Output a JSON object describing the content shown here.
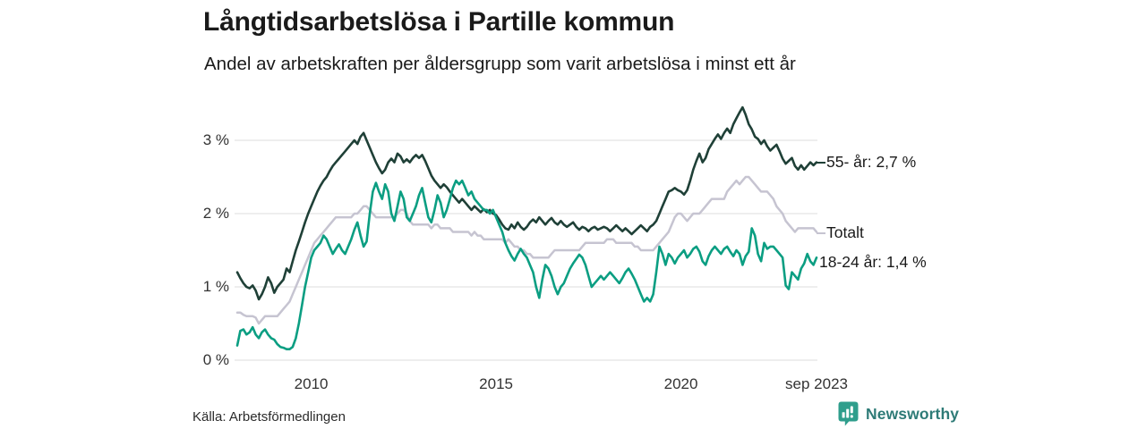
{
  "header": {
    "title": "Långtidsarbetslösa i Partille kommun",
    "subtitle": "Andel av arbetskraften per åldersgrupp som varit arbetslösa i minst ett år"
  },
  "footer": {
    "source": "Källa: Arbetsförmedlingen",
    "brand": "Newsworthy",
    "logo_icon": "bar-chart-speech-bubble-icon"
  },
  "colors": {
    "series_55": "#1f4037",
    "series_total": "#c6c4d1",
    "series_1824": "#0b9e82",
    "grid": "#dddddd",
    "axis_text": "#333333",
    "text": "#1a1a1a",
    "brand_text": "#2e7b77",
    "brand_icon": "#2f9e8c"
  },
  "chart_data": {
    "type": "line",
    "title": "Långtidsarbetslösa i Partille kommun",
    "subtitle": "Andel av arbetskraften per åldersgrupp som varit arbetslösa i minst ett år",
    "unit": "%",
    "x_unit": "month",
    "x_start": "2008-01",
    "x_end": "2023-09",
    "ylim": [
      0,
      3.6
    ],
    "grid": true,
    "yticks": [
      {
        "value": 0,
        "label": "0 %"
      },
      {
        "value": 1,
        "label": "1 %"
      },
      {
        "value": 2,
        "label": "2 %"
      },
      {
        "value": 3,
        "label": "3 %"
      }
    ],
    "xticks": [
      {
        "month_index": 24,
        "label": "2010"
      },
      {
        "month_index": 84,
        "label": "2015"
      },
      {
        "month_index": 144,
        "label": "2020"
      },
      {
        "month_index": 188,
        "label": "sep 2023"
      }
    ],
    "series": [
      {
        "id": "total",
        "name": "Totalt",
        "end_label": "Totalt",
        "last_value": 1.75,
        "values": [
          0.65,
          0.65,
          0.62,
          0.6,
          0.6,
          0.6,
          0.58,
          0.5,
          0.55,
          0.6,
          0.6,
          0.6,
          0.6,
          0.6,
          0.65,
          0.7,
          0.75,
          0.8,
          0.9,
          1.0,
          1.1,
          1.2,
          1.3,
          1.4,
          1.5,
          1.6,
          1.65,
          1.7,
          1.75,
          1.8,
          1.85,
          1.9,
          1.95,
          1.95,
          1.95,
          1.95,
          1.95,
          1.95,
          2.0,
          2.0,
          2.05,
          2.1,
          2.1,
          2.05,
          2.0,
          1.95,
          1.95,
          1.95,
          1.95,
          1.95,
          1.95,
          1.95,
          2.0,
          2.05,
          2.05,
          2.0,
          1.9,
          1.85,
          1.85,
          1.85,
          1.85,
          1.85,
          1.85,
          1.8,
          1.85,
          1.85,
          1.8,
          1.8,
          1.8,
          1.8,
          1.75,
          1.75,
          1.75,
          1.75,
          1.75,
          1.75,
          1.7,
          1.75,
          1.7,
          1.7,
          1.65,
          1.65,
          1.65,
          1.65,
          1.65,
          1.65,
          1.65,
          1.6,
          1.65,
          1.6,
          1.55,
          1.55,
          1.5,
          1.5,
          1.45,
          1.45,
          1.4,
          1.4,
          1.4,
          1.4,
          1.4,
          1.4,
          1.45,
          1.5,
          1.5,
          1.5,
          1.5,
          1.5,
          1.5,
          1.5,
          1.5,
          1.5,
          1.55,
          1.6,
          1.6,
          1.6,
          1.6,
          1.6,
          1.6,
          1.6,
          1.65,
          1.65,
          1.65,
          1.6,
          1.6,
          1.6,
          1.6,
          1.6,
          1.6,
          1.55,
          1.55,
          1.5,
          1.5,
          1.5,
          1.5,
          1.5,
          1.55,
          1.6,
          1.65,
          1.7,
          1.75,
          1.85,
          1.95,
          2.0,
          2.0,
          1.95,
          1.9,
          1.95,
          2.0,
          2.0,
          2.0,
          2.05,
          2.1,
          2.15,
          2.2,
          2.2,
          2.2,
          2.2,
          2.2,
          2.3,
          2.35,
          2.4,
          2.45,
          2.4,
          2.45,
          2.5,
          2.5,
          2.45,
          2.4,
          2.35,
          2.3,
          2.3,
          2.3,
          2.25,
          2.2,
          2.1,
          2.05,
          2.0,
          1.9,
          1.85,
          1.8,
          1.75,
          1.8,
          1.8,
          1.8,
          1.8,
          1.8,
          1.8,
          1.75
        ]
      },
      {
        "id": "age55",
        "name": "55- år",
        "end_label": "55- år: 2,7 %",
        "last_value": 2.7,
        "values": [
          1.2,
          1.12,
          1.05,
          1.0,
          0.98,
          1.02,
          0.95,
          0.83,
          0.9,
          1.0,
          1.13,
          1.05,
          0.92,
          1.0,
          1.05,
          1.1,
          1.25,
          1.2,
          1.35,
          1.5,
          1.62,
          1.75,
          1.88,
          2.0,
          2.1,
          2.2,
          2.3,
          2.38,
          2.45,
          2.5,
          2.58,
          2.65,
          2.7,
          2.75,
          2.8,
          2.85,
          2.9,
          2.95,
          3.0,
          2.95,
          3.05,
          3.1,
          3.0,
          2.9,
          2.8,
          2.7,
          2.62,
          2.55,
          2.6,
          2.7,
          2.75,
          2.7,
          2.82,
          2.78,
          2.7,
          2.74,
          2.7,
          2.76,
          2.8,
          2.76,
          2.8,
          2.72,
          2.62,
          2.52,
          2.45,
          2.4,
          2.35,
          2.4,
          2.36,
          2.3,
          2.25,
          2.2,
          2.15,
          2.2,
          2.15,
          2.1,
          2.05,
          2.1,
          2.06,
          2.02,
          2.06,
          2.02,
          2.05,
          2.0,
          1.98,
          1.92,
          1.85,
          1.8,
          1.78,
          1.85,
          1.8,
          1.88,
          1.82,
          1.78,
          1.82,
          1.88,
          1.92,
          1.88,
          1.95,
          1.9,
          1.85,
          1.9,
          1.94,
          1.88,
          1.85,
          1.9,
          1.85,
          1.82,
          1.85,
          1.88,
          1.82,
          1.78,
          1.82,
          1.8,
          1.76,
          1.8,
          1.82,
          1.78,
          1.8,
          1.82,
          1.8,
          1.76,
          1.8,
          1.84,
          1.8,
          1.76,
          1.8,
          1.76,
          1.72,
          1.76,
          1.8,
          1.84,
          1.8,
          1.76,
          1.82,
          1.85,
          1.9,
          2.0,
          2.1,
          2.2,
          2.3,
          2.32,
          2.35,
          2.32,
          2.3,
          2.26,
          2.32,
          2.45,
          2.6,
          2.72,
          2.82,
          2.7,
          2.76,
          2.88,
          2.95,
          3.02,
          3.08,
          3.02,
          3.1,
          3.16,
          3.1,
          3.22,
          3.3,
          3.38,
          3.45,
          3.35,
          3.22,
          3.15,
          3.05,
          3.02,
          2.95,
          3.0,
          2.92,
          2.86,
          2.9,
          2.94,
          2.85,
          2.75,
          2.68,
          2.72,
          2.76,
          2.65,
          2.6,
          2.66,
          2.6,
          2.65,
          2.7,
          2.66,
          2.7
        ]
      },
      {
        "id": "age1824",
        "name": "18-24 år",
        "end_label": "18-24 år: 1,4 %",
        "last_value": 1.4,
        "values": [
          0.2,
          0.4,
          0.42,
          0.35,
          0.38,
          0.45,
          0.35,
          0.3,
          0.38,
          0.42,
          0.35,
          0.3,
          0.28,
          0.22,
          0.18,
          0.17,
          0.15,
          0.15,
          0.18,
          0.3,
          0.5,
          0.75,
          1.0,
          1.2,
          1.4,
          1.5,
          1.55,
          1.6,
          1.7,
          1.65,
          1.55,
          1.45,
          1.52,
          1.58,
          1.5,
          1.45,
          1.55,
          1.65,
          1.78,
          1.88,
          1.7,
          1.55,
          1.62,
          2.0,
          2.3,
          2.42,
          2.3,
          2.2,
          2.4,
          2.3,
          2.0,
          1.9,
          2.1,
          2.3,
          2.2,
          1.95,
          1.9,
          2.0,
          2.1,
          2.25,
          2.35,
          2.15,
          1.95,
          1.88,
          2.05,
          2.25,
          2.15,
          1.95,
          2.05,
          2.2,
          2.35,
          2.45,
          2.4,
          2.45,
          2.35,
          2.25,
          2.3,
          2.2,
          2.15,
          2.1,
          2.05,
          2.05,
          2.0,
          2.05,
          1.95,
          1.85,
          1.75,
          1.6,
          1.5,
          1.42,
          1.36,
          1.45,
          1.52,
          1.45,
          1.4,
          1.3,
          1.2,
          1.0,
          0.85,
          1.1,
          1.3,
          1.25,
          1.15,
          1.0,
          0.9,
          1.0,
          1.05,
          1.15,
          1.25,
          1.32,
          1.38,
          1.44,
          1.4,
          1.3,
          1.15,
          1.0,
          1.05,
          1.1,
          1.15,
          1.1,
          1.15,
          1.2,
          1.15,
          1.1,
          1.05,
          1.12,
          1.2,
          1.25,
          1.18,
          1.1,
          1.0,
          0.9,
          0.8,
          0.85,
          0.8,
          0.9,
          1.2,
          1.55,
          1.45,
          1.3,
          1.45,
          1.4,
          1.32,
          1.4,
          1.45,
          1.5,
          1.4,
          1.45,
          1.52,
          1.55,
          1.48,
          1.35,
          1.3,
          1.42,
          1.5,
          1.55,
          1.5,
          1.45,
          1.52,
          1.55,
          1.48,
          1.42,
          1.5,
          1.45,
          1.3,
          1.42,
          1.48,
          1.8,
          1.7,
          1.45,
          1.35,
          1.6,
          1.52,
          1.55,
          1.55,
          1.5,
          1.45,
          1.4,
          1.02,
          0.97,
          1.2,
          1.15,
          1.1,
          1.25,
          1.32,
          1.45,
          1.35,
          1.3,
          1.4
        ]
      }
    ]
  }
}
